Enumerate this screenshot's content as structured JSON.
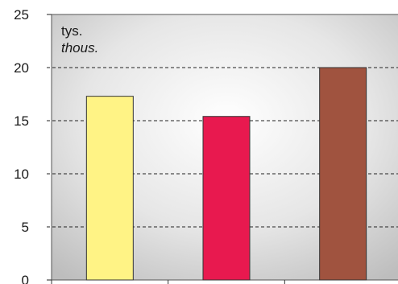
{
  "chart_data": {
    "type": "bar",
    "title": "",
    "xlabel": "",
    "ylabel": "",
    "unit_primary": "tys.",
    "unit_secondary": "thous.",
    "categories": [
      "",
      "",
      ""
    ],
    "values": [
      17.3,
      15.4,
      20.0
    ],
    "bar_colors": [
      "#fff385",
      "#e8194f",
      "#a0533f"
    ],
    "ylim": [
      0,
      25
    ],
    "yticks": [
      0,
      5,
      10,
      15,
      20,
      25
    ],
    "yticks_labels": [
      "0",
      "5",
      "10",
      "15",
      "20",
      "25"
    ],
    "grid": true,
    "grid_style": "dashed",
    "legend": "none",
    "plot_background": "gradient light-to-gray"
  }
}
